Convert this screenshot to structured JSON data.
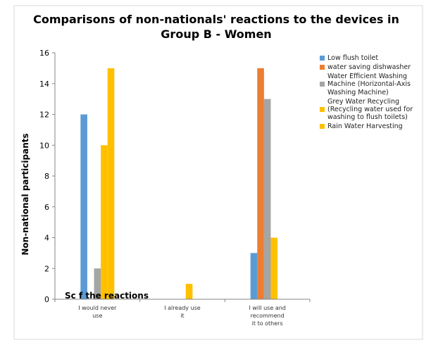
{
  "chart_data": {
    "type": "bar",
    "title_lines": [
      "Comparisons of non-nationals' reactions to the devices in",
      "Group B - Women"
    ],
    "ylabel": "Non-national participants",
    "xlabel": "",
    "ylim": [
      0,
      16
    ],
    "yticks": [
      0,
      2,
      4,
      6,
      8,
      10,
      12,
      14,
      16
    ],
    "grid": false,
    "legend_position": "right",
    "annotation": "Sc   f the reactions",
    "categories": [
      [
        "I would never",
        "use"
      ],
      [
        "I already use",
        "it"
      ],
      [
        "I will use and",
        "recommend",
        "it to others"
      ]
    ],
    "series": [
      {
        "name": "Low flush toilet",
        "color": "#5b9bd5",
        "values": [
          12,
          0,
          3
        ]
      },
      {
        "name": "water saving dishwasher",
        "color": "#ed7d31",
        "values": [
          0,
          0,
          15
        ]
      },
      {
        "name": "Water Efficient Washing Machine (Horizontal-Axis Washing Machine)",
        "color": "#a5a5a5",
        "values": [
          2,
          0,
          13
        ]
      },
      {
        "name": "Grey Water Recycling (Recycling water used for washing to flush toilets)",
        "color": "#ffc000",
        "values": [
          10,
          1,
          4
        ]
      },
      {
        "name": "Rain Water Harvesting",
        "color": "#ffc000",
        "values": [
          15,
          0,
          0
        ]
      }
    ]
  }
}
